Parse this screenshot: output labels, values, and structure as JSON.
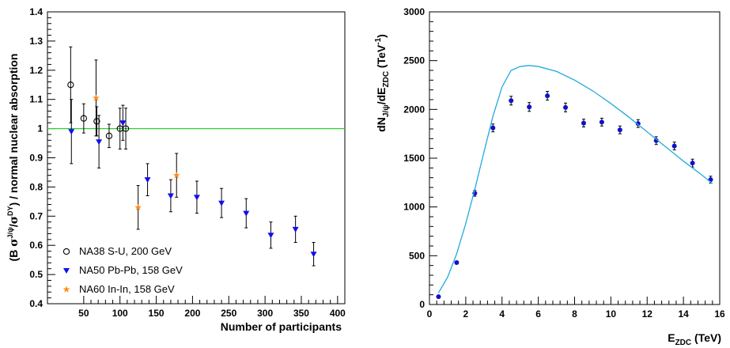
{
  "chart_data": [
    {
      "type": "scatter",
      "xlabel": "Number of participants",
      "ylabel_parts": {
        "open": "(B ",
        "sigma1": "σ",
        "sup1": "J/ψ",
        "mid": "/",
        "sigma2": "σ",
        "sup2": "DY",
        "rest": ") / normal nuclear absorption"
      },
      "xlim": [
        0,
        410
      ],
      "ylim": [
        0.4,
        1.4
      ],
      "x_ticks": [
        50,
        100,
        150,
        200,
        250,
        300,
        350,
        400
      ],
      "y_ticks": [
        0.4,
        0.5,
        0.6,
        0.7,
        0.8,
        0.9,
        1,
        1.1,
        1.2,
        1.3,
        1.4
      ],
      "x_tick_labels": [
        "50",
        "100",
        "150",
        "200",
        "250",
        "300",
        "350",
        "400"
      ],
      "y_tick_labels": [
        "0.4",
        "0.5",
        "0.6",
        "0.7",
        "0.8",
        "0.9",
        "1",
        "1.1",
        "1.2",
        "1.3",
        "1.4"
      ],
      "reference_line": {
        "y": 1.0,
        "color": "#33cc33"
      },
      "legend_position": "bottom-left",
      "series": [
        {
          "name": "NA38 S-U, 200 GeV",
          "marker": "circle-open",
          "color": "#000000",
          "points": [
            {
              "x": 32,
              "y": 1.15,
              "err": 0.13
            },
            {
              "x": 50,
              "y": 1.035,
              "err": 0.05
            },
            {
              "x": 68,
              "y": 1.025,
              "err": 0.05
            },
            {
              "x": 85,
              "y": 0.975,
              "err": 0.04
            },
            {
              "x": 100,
              "y": 1.0,
              "err": 0.07
            },
            {
              "x": 108,
              "y": 1.0,
              "err": 0.07
            }
          ]
        },
        {
          "name": "NA50 Pb-Pb, 158 GeV",
          "marker": "triangle-down",
          "color": "#1010ee",
          "points": [
            {
              "x": 33,
              "y": 0.99,
              "err": 0.11
            },
            {
              "x": 71,
              "y": 0.955,
              "err": 0.09
            },
            {
              "x": 104,
              "y": 1.02,
              "err": 0.06
            },
            {
              "x": 138,
              "y": 0.825,
              "err": 0.055
            },
            {
              "x": 170,
              "y": 0.77,
              "err": 0.055
            },
            {
              "x": 206,
              "y": 0.765,
              "err": 0.055
            },
            {
              "x": 240,
              "y": 0.745,
              "err": 0.05
            },
            {
              "x": 274,
              "y": 0.71,
              "err": 0.05
            },
            {
              "x": 308,
              "y": 0.635,
              "err": 0.045
            },
            {
              "x": 342,
              "y": 0.655,
              "err": 0.045
            },
            {
              "x": 367,
              "y": 0.57,
              "err": 0.04
            }
          ]
        },
        {
          "name": "NA60 In-In, 158 GeV",
          "marker": "star",
          "color": "#ff8c1a",
          "points": [
            {
              "x": 67,
              "y": 1.105,
              "err": 0.13
            },
            {
              "x": 125,
              "y": 0.73,
              "err": 0.075
            },
            {
              "x": 178,
              "y": 0.84,
              "err": 0.075
            }
          ]
        }
      ]
    },
    {
      "type": "scatter",
      "xlabel_parts": {
        "main": "E",
        "sub": "ZDC",
        "unit": " (TeV)"
      },
      "ylabel_parts": {
        "a": "dN",
        "sub1": "J/ψ",
        "b": "/dE",
        "sub2": "ZDC",
        "c": " (TeV",
        "sup": "-1",
        "d": ")"
      },
      "xlim": [
        0,
        16
      ],
      "ylim": [
        0,
        3000
      ],
      "x_ticks": [
        0,
        2,
        4,
        6,
        8,
        10,
        12,
        14,
        16
      ],
      "y_ticks": [
        0,
        500,
        1000,
        1500,
        2000,
        2500,
        3000
      ],
      "x_tick_labels": [
        "0",
        "2",
        "4",
        "6",
        "8",
        "10",
        "12",
        "14",
        "16"
      ],
      "y_tick_labels": [
        "0",
        "500",
        "1000",
        "1500",
        "2000",
        "2500",
        "3000"
      ],
      "series": [
        {
          "marker": "circle-filled",
          "color": "#1010cc",
          "points": [
            {
              "x": 0.5,
              "y": 80,
              "err": 10
            },
            {
              "x": 1.5,
              "y": 430,
              "err": 15
            },
            {
              "x": 2.5,
              "y": 1140,
              "err": 30
            },
            {
              "x": 3.5,
              "y": 1810,
              "err": 40
            },
            {
              "x": 4.5,
              "y": 2090,
              "err": 45
            },
            {
              "x": 5.5,
              "y": 2025,
              "err": 45
            },
            {
              "x": 6.5,
              "y": 2140,
              "err": 45
            },
            {
              "x": 7.5,
              "y": 2020,
              "err": 45
            },
            {
              "x": 8.5,
              "y": 1860,
              "err": 40
            },
            {
              "x": 9.5,
              "y": 1870,
              "err": 40
            },
            {
              "x": 10.5,
              "y": 1790,
              "err": 40
            },
            {
              "x": 11.5,
              "y": 1855,
              "err": 40
            },
            {
              "x": 12.5,
              "y": 1680,
              "err": 40
            },
            {
              "x": 13.5,
              "y": 1625,
              "err": 40
            },
            {
              "x": 14.5,
              "y": 1450,
              "err": 40
            },
            {
              "x": 15.5,
              "y": 1280,
              "err": 35
            }
          ]
        },
        {
          "marker": "line",
          "color": "#22aadd",
          "points": [
            {
              "x": 0.5,
              "y": 120
            },
            {
              "x": 1.0,
              "y": 280
            },
            {
              "x": 1.5,
              "y": 520
            },
            {
              "x": 2.0,
              "y": 830
            },
            {
              "x": 2.5,
              "y": 1180
            },
            {
              "x": 3.0,
              "y": 1560
            },
            {
              "x": 3.5,
              "y": 1930
            },
            {
              "x": 4.0,
              "y": 2230
            },
            {
              "x": 4.5,
              "y": 2400
            },
            {
              "x": 5.0,
              "y": 2440
            },
            {
              "x": 5.5,
              "y": 2450
            },
            {
              "x": 6.0,
              "y": 2440
            },
            {
              "x": 7.0,
              "y": 2390
            },
            {
              "x": 8.0,
              "y": 2300
            },
            {
              "x": 9.0,
              "y": 2190
            },
            {
              "x": 10.0,
              "y": 2060
            },
            {
              "x": 11.0,
              "y": 1920
            },
            {
              "x": 12.0,
              "y": 1770
            },
            {
              "x": 13.0,
              "y": 1620
            },
            {
              "x": 14.0,
              "y": 1470
            },
            {
              "x": 15.0,
              "y": 1330
            },
            {
              "x": 15.6,
              "y": 1240
            }
          ]
        }
      ]
    }
  ]
}
